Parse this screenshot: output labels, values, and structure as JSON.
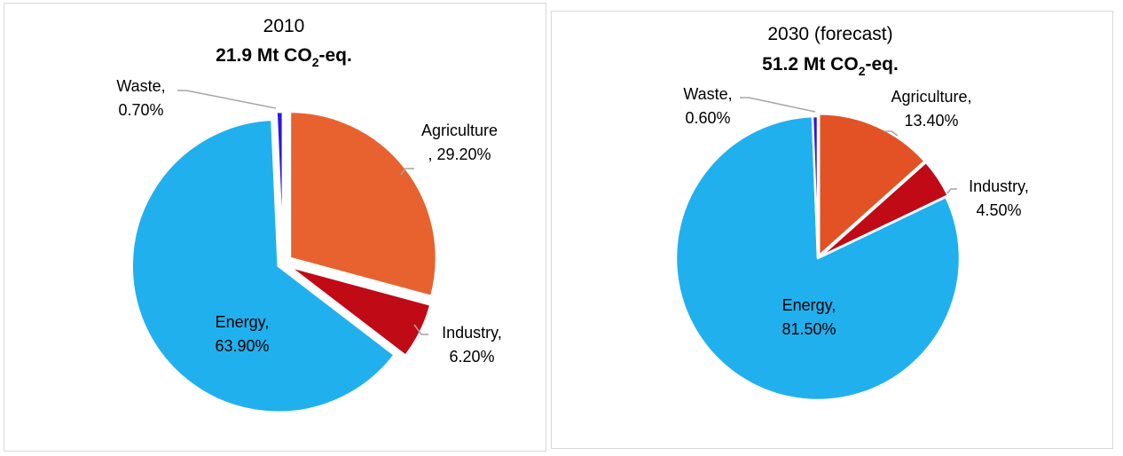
{
  "chart_data": [
    {
      "type": "pie",
      "title": "2010",
      "subtitle": {
        "prefix": "21.9 Mt CO",
        "subscript": "2",
        "suffix": "-eq."
      },
      "slices": [
        {
          "name": "Agriculture",
          "value": 29.2,
          "label_line1": "Agriculture",
          "label_line2": ", 29.20%",
          "color": "#E8622F"
        },
        {
          "name": "Industry",
          "value": 6.2,
          "label_line1": "Industry,",
          "label_line2": "6.20%",
          "color": "#C00A16"
        },
        {
          "name": "Energy",
          "value": 63.9,
          "label_line1": "Energy,",
          "label_line2": "63.90%",
          "color": "#21B0EE"
        },
        {
          "name": "Waste",
          "value": 0.7,
          "label_line1": "Waste,",
          "label_line2": "0.70%",
          "color": "#2A1AE0"
        }
      ]
    },
    {
      "type": "pie",
      "title": "2030 (forecast)",
      "subtitle": {
        "prefix": "51.2 Mt CO",
        "subscript": "2",
        "suffix": "-eq."
      },
      "slices": [
        {
          "name": "Agriculture",
          "value": 13.4,
          "label_line1": "Agriculture,",
          "label_line2": "13.40%",
          "color": "#E25225"
        },
        {
          "name": "Industry",
          "value": 4.5,
          "label_line1": "Industry,",
          "label_line2": "4.50%",
          "color": "#C00A16"
        },
        {
          "name": "Energy",
          "value": 81.5,
          "label_line1": "Energy,",
          "label_line2": "81.50%",
          "color": "#21B0EE"
        },
        {
          "name": "Waste",
          "value": 0.6,
          "label_line1": "Waste,",
          "label_line2": "0.60%",
          "color": "#2A1AE0"
        }
      ]
    }
  ]
}
